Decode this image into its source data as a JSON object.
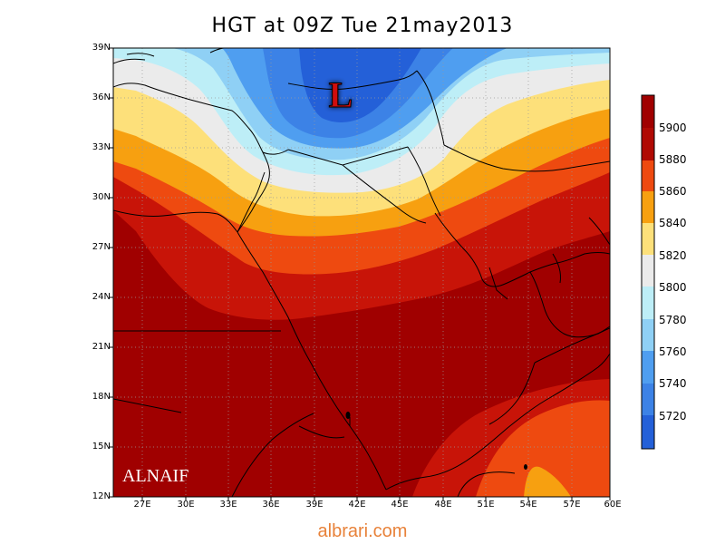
{
  "title": "HGT at 09Z Tue 21may2013",
  "watermark": "ALNAIF",
  "footer": {
    "text": "albrari.com",
    "color": "#e8823a"
  },
  "low_marker": {
    "label": "L",
    "color": "#d01010"
  },
  "map": {
    "lat_labels": [
      "39N",
      "36N",
      "33N",
      "30N",
      "27N",
      "24N",
      "21N",
      "18N",
      "15N",
      "12N"
    ],
    "lon_labels": [
      "27E",
      "30E",
      "33E",
      "36E",
      "39E",
      "42E",
      "45E",
      "48E",
      "51E",
      "54E",
      "57E",
      "60E"
    ]
  },
  "colorbar": {
    "levels": [
      "5900",
      "5880",
      "5860",
      "5840",
      "5820",
      "5800",
      "5780",
      "5760",
      "5740",
      "5720"
    ],
    "colors": [
      "#a00000",
      "#c81408",
      "#ee4a10",
      "#f7a010",
      "#fde07a",
      "#ebebeb",
      "#bdeef7",
      "#8fd0f5",
      "#4f9ef0",
      "#3c82e6",
      "#2460d8",
      "#1a50c8"
    ]
  }
}
